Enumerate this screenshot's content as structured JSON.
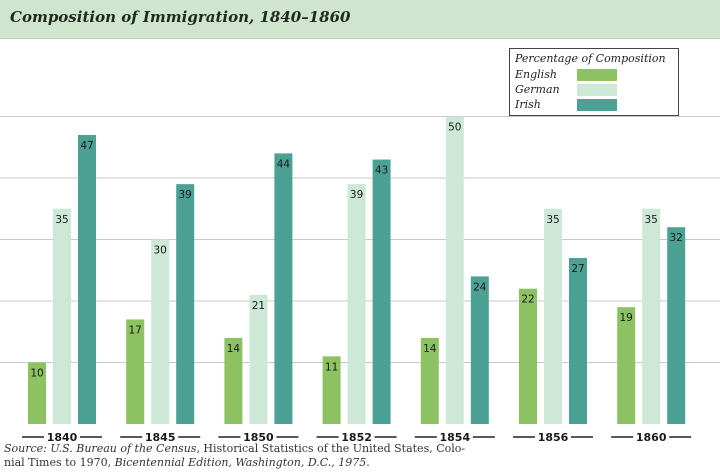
{
  "chart_data": {
    "type": "bar",
    "title": "Composition of Immigration, 1840–1860",
    "categories": [
      "1840",
      "1845",
      "1850",
      "1852",
      "1854",
      "1856",
      "1860"
    ],
    "series": [
      {
        "name": "English",
        "values": [
          10,
          17,
          14,
          11,
          14,
          22,
          19
        ],
        "color": "#8cc262"
      },
      {
        "name": "German",
        "values": [
          35,
          30,
          21,
          39,
          50,
          35,
          35
        ],
        "color": "#cde8d6"
      },
      {
        "name": "Irish",
        "values": [
          47,
          39,
          44,
          43,
          24,
          27,
          32
        ],
        "color": "#4ba294"
      }
    ],
    "ylim": [
      0,
      50
    ],
    "grid": true,
    "legend": {
      "title": "Percentage of Composition",
      "placement": "top-right"
    }
  },
  "source": {
    "prefix": "Source: ",
    "agency": "U.S. Bureau of the Census",
    "text1": ", Historical Statistics of the United States, Colo-",
    "text2": "nial Times to 1970, ",
    "edition": "Bicentennial Edition, Washington, D.C., 1975."
  }
}
